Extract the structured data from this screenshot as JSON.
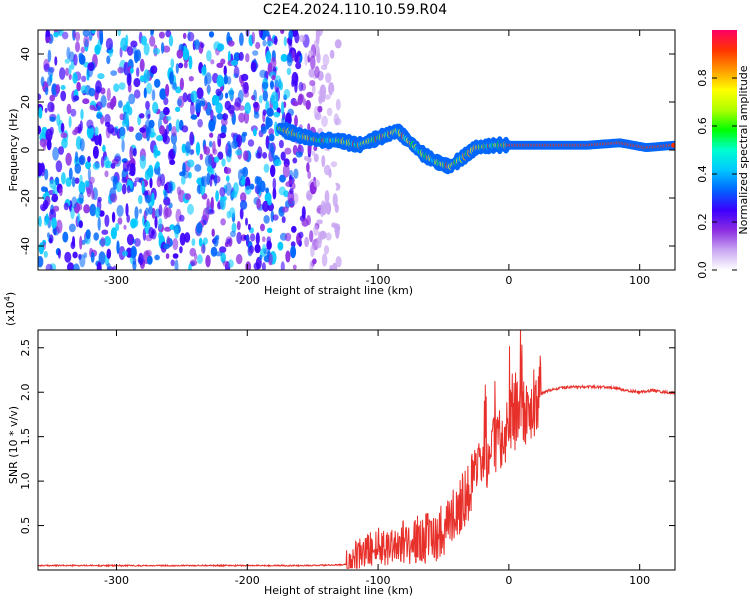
{
  "chart_data": [
    {
      "type": "heatmap",
      "title": "C2E4.2024.110.10.59.R04",
      "xlabel": "Height of straight line (km)",
      "ylabel": "Frequency (Hz)",
      "xlim": [
        -360,
        127
      ],
      "ylim": [
        -50,
        50
      ],
      "x_ticks": [
        -300,
        -200,
        -100,
        0,
        100
      ],
      "y_ticks": [
        -40,
        -20,
        0,
        20,
        40
      ],
      "x_tick_labels": [
        "-300",
        "-200",
        "-100",
        "0",
        "100"
      ],
      "y_tick_labels": [
        "-40",
        "-20",
        "0",
        "20",
        "40"
      ],
      "noise_region": [
        -360,
        -140
      ],
      "signal_track": [
        {
          "x": -175,
          "y": 9
        },
        {
          "x": -160,
          "y": 6
        },
        {
          "x": -145,
          "y": 4
        },
        {
          "x": -130,
          "y": 4
        },
        {
          "x": -115,
          "y": 2
        },
        {
          "x": -100,
          "y": 5
        },
        {
          "x": -85,
          "y": 8
        },
        {
          "x": -75,
          "y": 3
        },
        {
          "x": -65,
          "y": -2
        },
        {
          "x": -55,
          "y": -5
        },
        {
          "x": -45,
          "y": -7
        },
        {
          "x": -35,
          "y": -3
        },
        {
          "x": -25,
          "y": 1
        },
        {
          "x": -10,
          "y": 2
        },
        {
          "x": 0,
          "y": 2
        },
        {
          "x": 30,
          "y": 2
        },
        {
          "x": 60,
          "y": 2
        },
        {
          "x": 85,
          "y": 3
        },
        {
          "x": 105,
          "y": 1
        },
        {
          "x": 127,
          "y": 2
        }
      ],
      "colorbar": {
        "label": "Normalized spectral amplitude",
        "range": [
          0,
          1
        ],
        "ticks": [
          0.0,
          0.2,
          0.4,
          0.6,
          0.8
        ],
        "tick_labels": [
          "0.0",
          "0.2",
          "0.4",
          "0.6",
          "0.8"
        ],
        "colors": [
          "#ffffff",
          "#c9a6f2",
          "#8a2be2",
          "#3b00ff",
          "#0066ff",
          "#00c8ff",
          "#00ffd0",
          "#00ff00",
          "#b0ff00",
          "#ffff00",
          "#ff9900",
          "#ff3300",
          "#ff0066"
        ]
      }
    },
    {
      "type": "line",
      "title": "",
      "xlabel": "Height of straight line (km)",
      "ylabel": "SNR (10 * v/v)",
      "y_multiplier_label": "(x10",
      "y_multiplier_exp": "4",
      "xlim": [
        -360,
        127
      ],
      "ylim": [
        0,
        2.7
      ],
      "x_ticks": [
        -300,
        -200,
        -100,
        0,
        100
      ],
      "y_ticks": [
        0.5,
        1.0,
        1.5,
        2.0,
        2.5
      ],
      "x_tick_labels": [
        "-300",
        "-200",
        "-100",
        "0",
        "100"
      ],
      "y_tick_labels": [
        "0.5",
        "1.0",
        "1.5",
        "2.0",
        "2.5"
      ],
      "line_color": "#e8302a",
      "series": [
        {
          "x": [
            -360,
            -300,
            -250,
            -200,
            -150,
            -125,
            -115,
            -105,
            -95,
            -85,
            -75,
            -65,
            -55,
            -45,
            -35,
            -25,
            -15,
            -10,
            -5,
            0,
            5,
            10,
            15,
            20,
            25,
            30,
            40,
            50,
            60,
            70,
            80,
            90,
            100,
            110,
            120,
            127
          ],
          "values": [
            0.05,
            0.05,
            0.05,
            0.05,
            0.05,
            0.06,
            0.15,
            0.25,
            0.28,
            0.3,
            0.32,
            0.35,
            0.4,
            0.55,
            0.8,
            1.05,
            1.3,
            1.4,
            1.55,
            1.65,
            1.75,
            1.8,
            1.85,
            1.92,
            1.98,
            2.02,
            2.05,
            2.06,
            2.06,
            2.06,
            2.05,
            2.02,
            2.0,
            2.02,
            2.0,
            1.99
          ]
        }
      ]
    }
  ]
}
